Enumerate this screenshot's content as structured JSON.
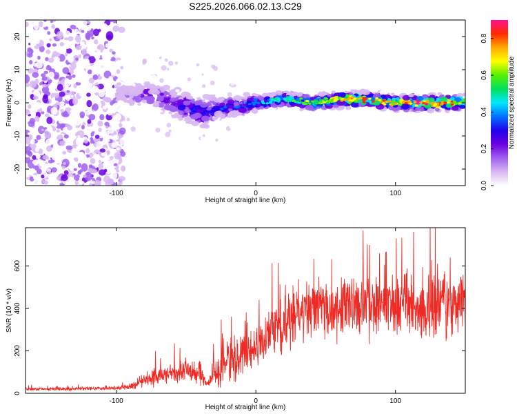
{
  "title": "S225.2026.066.02.13.C29",
  "colors": {
    "snr_line": "#ee2a24",
    "axis": "#000000",
    "colormap": [
      "#ffffff",
      "#d8b8f2",
      "#a060f0",
      "#6a00e0",
      "#2200ee",
      "#0070ff",
      "#00e8ff",
      "#00e060",
      "#55f000",
      "#ffff00",
      "#ffaa00",
      "#ff2a00",
      "#ff1090"
    ]
  },
  "chart_data": [
    {
      "type": "heatmap",
      "title": "",
      "xlabel": "Height of straight line (km)",
      "ylabel": "Frequency (Hz)",
      "xlim": [
        -165,
        150
      ],
      "ylim": [
        -25,
        25
      ],
      "xticks": [
        -100,
        0,
        100
      ],
      "yticks": [
        -20,
        -10,
        0,
        10,
        20
      ],
      "colorbar": {
        "label": "Normalized spectral amplitude",
        "range": [
          0,
          0.9
        ],
        "ticks": [
          0.0,
          0.2,
          0.4,
          0.6,
          0.8
        ]
      },
      "description_points": {
        "note": "Ridge center frequency (Hz) vs height (km)",
        "x": [
          -165,
          -100,
          -90,
          -80,
          -70,
          -60,
          -50,
          -40,
          -30,
          -20,
          -10,
          0,
          20,
          40,
          60,
          80,
          100,
          120,
          150
        ],
        "center_hz": [
          0,
          3,
          2,
          3,
          2,
          0,
          -1,
          -3,
          -2,
          -1,
          -1,
          0,
          1,
          0,
          1,
          1,
          0,
          0,
          0
        ],
        "peak_amplitude": [
          0.05,
          0.1,
          0.15,
          0.2,
          0.2,
          0.25,
          0.3,
          0.35,
          0.3,
          0.35,
          0.35,
          0.4,
          0.5,
          0.6,
          0.7,
          0.8,
          0.75,
          0.85,
          0.7
        ]
      }
    },
    {
      "type": "line",
      "title": "",
      "xlabel": "Height of straight line (km)",
      "ylabel": "SNR (10 * v/v)",
      "xlim": [
        -165,
        150
      ],
      "ylim": [
        0,
        780
      ],
      "xticks": [
        -100,
        0,
        100
      ],
      "yticks": [
        0,
        200,
        400,
        600
      ],
      "envelope": {
        "note": "Approximate SNR trend (mean, spread) vs height",
        "x": [
          -165,
          -140,
          -120,
          -100,
          -90,
          -80,
          -70,
          -60,
          -50,
          -40,
          -35,
          -30,
          -20,
          -10,
          0,
          10,
          20,
          30,
          40,
          50,
          60,
          70,
          80,
          90,
          100,
          110,
          120,
          130,
          140,
          150
        ],
        "mean": [
          20,
          20,
          22,
          25,
          30,
          60,
          90,
          95,
          110,
          100,
          40,
          100,
          150,
          180,
          230,
          280,
          330,
          370,
          390,
          400,
          405,
          410,
          410,
          410,
          410,
          420,
          400,
          410,
          400,
          410
        ],
        "spread": [
          8,
          8,
          8,
          10,
          15,
          35,
          60,
          50,
          70,
          70,
          15,
          80,
          110,
          120,
          120,
          130,
          150,
          160,
          170,
          170,
          170,
          170,
          170,
          170,
          170,
          180,
          170,
          170,
          160,
          160
        ]
      }
    }
  ]
}
